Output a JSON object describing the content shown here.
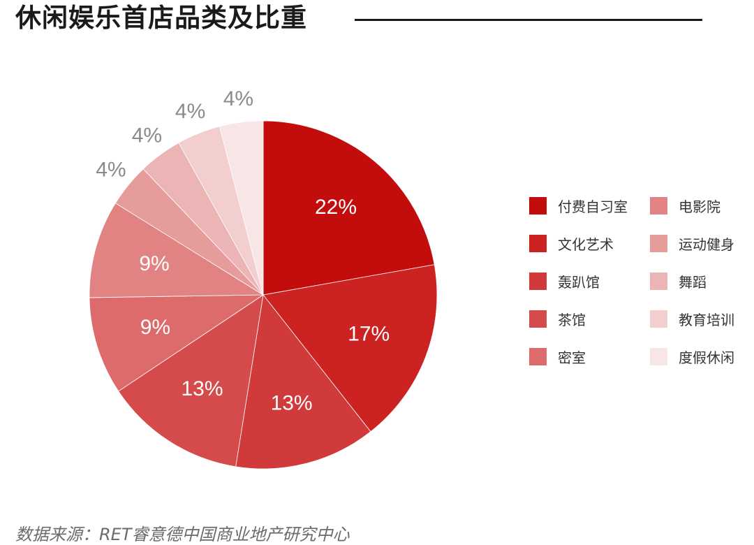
{
  "title": "休闲娱乐首店品类及比重",
  "source": "数据来源：RET睿意德中国商业地产研究中心",
  "chart_data": {
    "type": "pie",
    "categories": [
      "付费自习室",
      "文化艺术",
      "轰趴馆",
      "茶馆",
      "密室",
      "电影院",
      "运动健身",
      "舞蹈",
      "教育培训",
      "度假休闲"
    ],
    "values": [
      22,
      17,
      13,
      13,
      9,
      9,
      4,
      4,
      4,
      4
    ],
    "labels": [
      "22%",
      "17%",
      "13%",
      "13%",
      "9%",
      "9%",
      "4%",
      "4%",
      "4%",
      "4%"
    ],
    "colors": [
      "#c30d0d",
      "#cc2222",
      "#d13a3a",
      "#d54b4b",
      "#de6b6b",
      "#e28383",
      "#e79c9c",
      "#ecb5b5",
      "#f2cece",
      "#f8e6e6"
    ],
    "legend_position": "right",
    "legend_columns": 2
  }
}
